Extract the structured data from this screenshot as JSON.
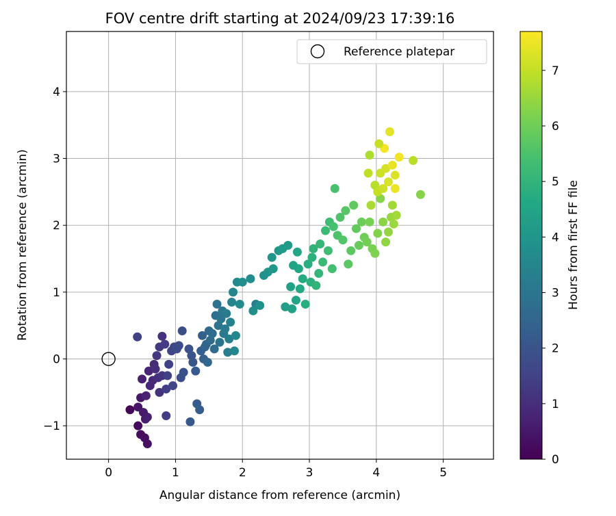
{
  "chart_data": {
    "type": "scatter",
    "title": "FOV centre drift starting at 2024/09/23 17:39:16",
    "xlabel": "Angular distance from reference (arcmin)",
    "ylabel": "Rotation from reference (arcmin)",
    "xlim": [
      -0.63,
      5.75
    ],
    "ylim": [
      -1.5,
      4.9
    ],
    "xticks": [
      0,
      1,
      2,
      3,
      4,
      5
    ],
    "yticks": [
      -1,
      0,
      1,
      2,
      3,
      4
    ],
    "grid": true,
    "legend": {
      "placement": "top-right",
      "entries": [
        "Reference platepar"
      ]
    },
    "reference_point": {
      "x": 0,
      "y": 0,
      "label": "Reference platepar"
    },
    "colorbar": {
      "label": "Hours from first FF file",
      "colormap": "viridis",
      "range": [
        0,
        7.7
      ],
      "ticks": [
        0,
        1,
        2,
        3,
        4,
        5,
        6,
        7
      ]
    },
    "points": [
      [
        0.32,
        -0.76,
        0.1
      ],
      [
        0.44,
        -1.0,
        0.2
      ],
      [
        0.48,
        -1.13,
        0.25
      ],
      [
        0.54,
        -1.18,
        0.3
      ],
      [
        0.58,
        -1.27,
        0.35
      ],
      [
        0.44,
        -0.72,
        0.45
      ],
      [
        0.48,
        -0.58,
        0.5
      ],
      [
        0.52,
        -0.8,
        0.55
      ],
      [
        0.55,
        -0.9,
        0.6
      ],
      [
        0.58,
        -0.87,
        0.65
      ],
      [
        0.5,
        -0.3,
        0.7
      ],
      [
        0.56,
        -0.55,
        0.75
      ],
      [
        0.6,
        -0.18,
        0.8
      ],
      [
        0.62,
        -0.4,
        0.85
      ],
      [
        0.66,
        -0.32,
        0.9
      ],
      [
        0.68,
        -0.08,
        0.95
      ],
      [
        0.7,
        -0.15,
        1.0
      ],
      [
        0.74,
        -0.28,
        1.05
      ],
      [
        0.76,
        -0.5,
        1.1
      ],
      [
        0.8,
        -0.25,
        1.15
      ],
      [
        0.72,
        0.05,
        1.2
      ],
      [
        0.76,
        0.18,
        1.3
      ],
      [
        0.8,
        0.34,
        1.1
      ],
      [
        0.84,
        0.22,
        1.35
      ],
      [
        0.86,
        -0.45,
        1.4
      ],
      [
        0.88,
        -0.25,
        1.45
      ],
      [
        0.9,
        -0.08,
        1.5
      ],
      [
        0.94,
        0.12,
        1.55
      ],
      [
        0.96,
        -0.4,
        1.6
      ],
      [
        0.98,
        0.18,
        1.65
      ],
      [
        1.02,
        0.15,
        1.7
      ],
      [
        1.05,
        0.2,
        1.75
      ],
      [
        1.08,
        -0.28,
        1.8
      ],
      [
        1.1,
        0.42,
        1.85
      ],
      [
        1.12,
        -0.2,
        1.9
      ],
      [
        0.86,
        -0.85,
        1.4
      ],
      [
        0.43,
        0.33,
        1.5
      ],
      [
        1.2,
        0.15,
        1.95
      ],
      [
        1.24,
        0.05,
        2.0
      ],
      [
        1.26,
        -0.05,
        2.05
      ],
      [
        1.22,
        -0.94,
        2.1
      ],
      [
        1.3,
        -0.18,
        2.15
      ],
      [
        1.32,
        -0.67,
        2.2
      ],
      [
        1.36,
        -0.76,
        2.25
      ],
      [
        1.38,
        0.12,
        2.3
      ],
      [
        1.4,
        0.35,
        2.35
      ],
      [
        1.42,
        0.0,
        2.4
      ],
      [
        1.44,
        0.18,
        2.45
      ],
      [
        1.46,
        0.22,
        2.5
      ],
      [
        1.48,
        -0.05,
        2.55
      ],
      [
        1.5,
        0.42,
        2.6
      ],
      [
        1.52,
        0.28,
        2.65
      ],
      [
        1.55,
        0.38,
        2.7
      ],
      [
        1.58,
        0.15,
        2.75
      ],
      [
        1.6,
        0.65,
        2.8
      ],
      [
        1.62,
        0.82,
        2.85
      ],
      [
        1.64,
        0.5,
        2.9
      ],
      [
        1.66,
        0.25,
        2.95
      ],
      [
        1.68,
        0.6,
        3.0
      ],
      [
        1.7,
        0.72,
        3.05
      ],
      [
        1.72,
        0.38,
        3.1
      ],
      [
        1.74,
        0.45,
        3.15
      ],
      [
        1.76,
        0.68,
        3.2
      ],
      [
        1.78,
        0.1,
        3.25
      ],
      [
        1.8,
        0.3,
        3.3
      ],
      [
        1.82,
        0.55,
        3.35
      ],
      [
        1.84,
        0.85,
        3.4
      ],
      [
        1.86,
        1.0,
        3.45
      ],
      [
        1.88,
        0.12,
        3.5
      ],
      [
        1.9,
        0.35,
        3.55
      ],
      [
        1.92,
        1.15,
        3.6
      ],
      [
        1.96,
        0.82,
        3.65
      ],
      [
        2.0,
        1.15,
        3.7
      ],
      [
        2.12,
        1.2,
        3.75
      ],
      [
        2.2,
        0.82,
        3.3
      ],
      [
        2.16,
        0.72,
        3.8
      ],
      [
        2.26,
        0.8,
        3.85
      ],
      [
        2.32,
        1.25,
        3.9
      ],
      [
        2.38,
        1.3,
        3.95
      ],
      [
        2.44,
        1.52,
        4.0
      ],
      [
        2.46,
        1.35,
        4.05
      ],
      [
        2.54,
        1.62,
        4.1
      ],
      [
        2.6,
        1.65,
        4.15
      ],
      [
        2.64,
        0.78,
        4.3
      ],
      [
        2.68,
        1.7,
        4.2
      ],
      [
        2.72,
        1.08,
        4.35
      ],
      [
        2.74,
        0.75,
        4.4
      ],
      [
        2.76,
        1.4,
        4.45
      ],
      [
        2.8,
        0.88,
        4.5
      ],
      [
        2.82,
        1.6,
        4.55
      ],
      [
        2.84,
        1.35,
        4.6
      ],
      [
        2.86,
        1.05,
        4.65
      ],
      [
        2.9,
        1.2,
        4.7
      ],
      [
        2.94,
        0.82,
        4.75
      ],
      [
        2.98,
        1.42,
        4.8
      ],
      [
        3.02,
        1.15,
        4.85
      ],
      [
        3.04,
        1.52,
        4.9
      ],
      [
        3.06,
        1.65,
        4.95
      ],
      [
        3.1,
        1.1,
        5.0
      ],
      [
        3.14,
        1.28,
        5.05
      ],
      [
        3.16,
        1.72,
        5.1
      ],
      [
        3.2,
        1.45,
        5.15
      ],
      [
        3.24,
        1.92,
        5.2
      ],
      [
        3.28,
        1.62,
        5.25
      ],
      [
        3.3,
        2.05,
        5.3
      ],
      [
        3.34,
        1.35,
        5.35
      ],
      [
        3.36,
        1.98,
        5.4
      ],
      [
        3.38,
        2.55,
        5.45
      ],
      [
        3.42,
        1.85,
        5.5
      ],
      [
        3.46,
        2.12,
        5.55
      ],
      [
        3.5,
        1.78,
        5.6
      ],
      [
        3.54,
        2.22,
        5.65
      ],
      [
        3.58,
        1.42,
        5.7
      ],
      [
        3.62,
        1.62,
        5.75
      ],
      [
        3.66,
        2.3,
        5.8
      ],
      [
        3.7,
        1.95,
        5.85
      ],
      [
        3.74,
        1.7,
        5.9
      ],
      [
        3.78,
        2.05,
        5.95
      ],
      [
        3.82,
        1.82,
        6.0
      ],
      [
        3.86,
        1.75,
        6.05
      ],
      [
        3.9,
        2.05,
        6.1
      ],
      [
        3.94,
        1.65,
        6.15
      ],
      [
        3.98,
        1.58,
        6.2
      ],
      [
        4.02,
        1.88,
        6.25
      ],
      [
        4.06,
        2.4,
        6.3
      ],
      [
        4.1,
        2.05,
        6.35
      ],
      [
        4.14,
        1.75,
        6.4
      ],
      [
        4.18,
        1.9,
        6.45
      ],
      [
        4.22,
        2.12,
        6.5
      ],
      [
        4.26,
        2.02,
        6.55
      ],
      [
        4.3,
        2.15,
        6.6
      ],
      [
        4.66,
        2.46,
        6.3
      ],
      [
        4.55,
        2.97,
        6.9
      ],
      [
        3.92,
        2.3,
        6.7
      ],
      [
        3.98,
        2.6,
        6.85
      ],
      [
        4.02,
        2.5,
        7.0
      ],
      [
        4.06,
        2.78,
        7.1
      ],
      [
        4.1,
        2.55,
        7.15
      ],
      [
        4.14,
        2.85,
        7.2
      ],
      [
        4.18,
        2.65,
        7.25
      ],
      [
        4.2,
        3.4,
        7.4
      ],
      [
        4.24,
        2.9,
        7.45
      ],
      [
        4.28,
        2.55,
        7.5
      ],
      [
        4.34,
        3.02,
        7.55
      ],
      [
        4.12,
        3.15,
        7.6
      ],
      [
        3.9,
        3.05,
        6.75
      ],
      [
        4.04,
        3.22,
        7.05
      ],
      [
        3.88,
        2.78,
        6.95
      ],
      [
        4.24,
        2.3,
        6.6
      ],
      [
        4.28,
        2.75,
        7.3
      ]
    ]
  }
}
